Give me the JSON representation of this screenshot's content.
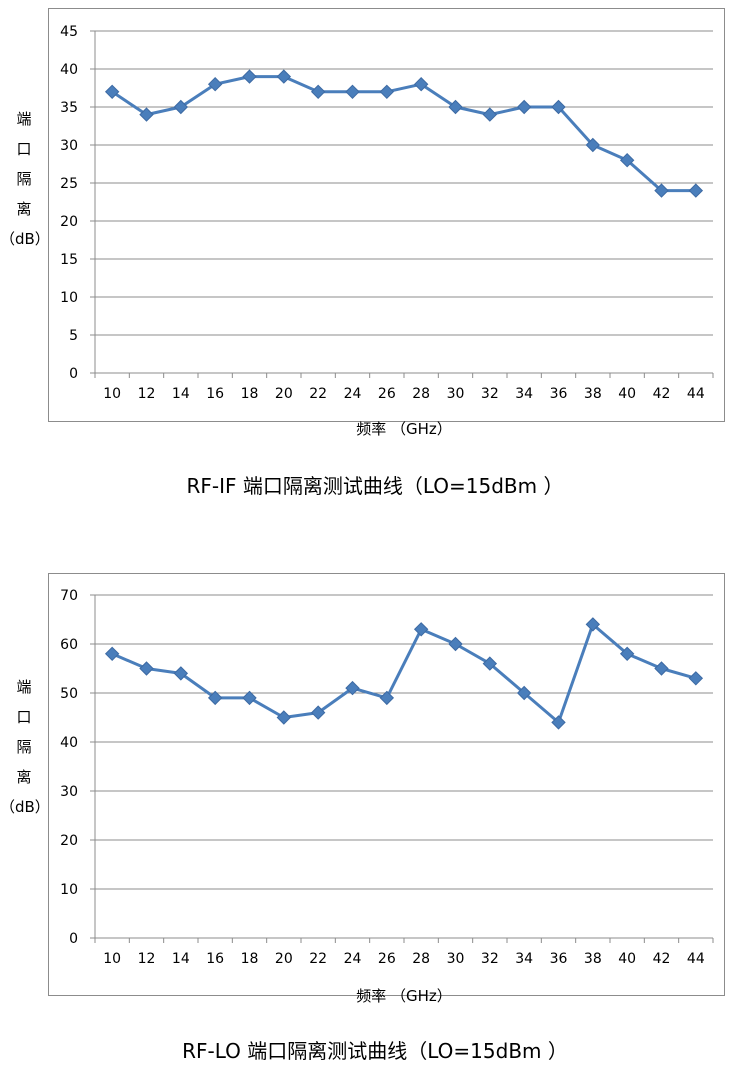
{
  "chart_data": [
    {
      "type": "line",
      "title": "RF-IF 端口隔离测试曲线（LO=15dBm ）",
      "xlabel": "频率  （GHz）",
      "ylabel": "端口隔离（dB）",
      "x": [
        10,
        12,
        14,
        16,
        18,
        20,
        22,
        24,
        26,
        28,
        30,
        32,
        34,
        36,
        38,
        40,
        42,
        44
      ],
      "series": [
        {
          "values": [
            37,
            34,
            35,
            38,
            39,
            39,
            37,
            37,
            37,
            38,
            35,
            34,
            35,
            35,
            30,
            28,
            24,
            24
          ]
        }
      ],
      "ylim": [
        0,
        45
      ],
      "yticks": [
        0,
        5,
        10,
        15,
        20,
        25,
        30,
        35,
        40,
        45
      ],
      "grid": true,
      "color": "#4a7ebb",
      "marker": "diamond"
    },
    {
      "type": "line",
      "title": "RF-LO 端口隔离测试曲线（LO=15dBm ）",
      "xlabel": "频率  （GHz）",
      "ylabel": "端口隔离（dB）",
      "x": [
        10,
        12,
        14,
        16,
        18,
        20,
        22,
        24,
        26,
        28,
        30,
        32,
        34,
        36,
        38,
        40,
        42,
        44
      ],
      "series": [
        {
          "values": [
            58,
            55,
            54,
            49,
            49,
            45,
            46,
            51,
            49,
            63,
            60,
            56,
            50,
            44,
            64,
            58,
            55,
            53
          ]
        }
      ],
      "ylim": [
        0,
        70
      ],
      "yticks": [
        0,
        10,
        20,
        30,
        40,
        50,
        60,
        70
      ],
      "grid": true,
      "color": "#4a7ebb",
      "marker": "diamond"
    }
  ],
  "ylabel_lines": [
    "端",
    "口",
    "隔",
    "离",
    "（dB）"
  ]
}
